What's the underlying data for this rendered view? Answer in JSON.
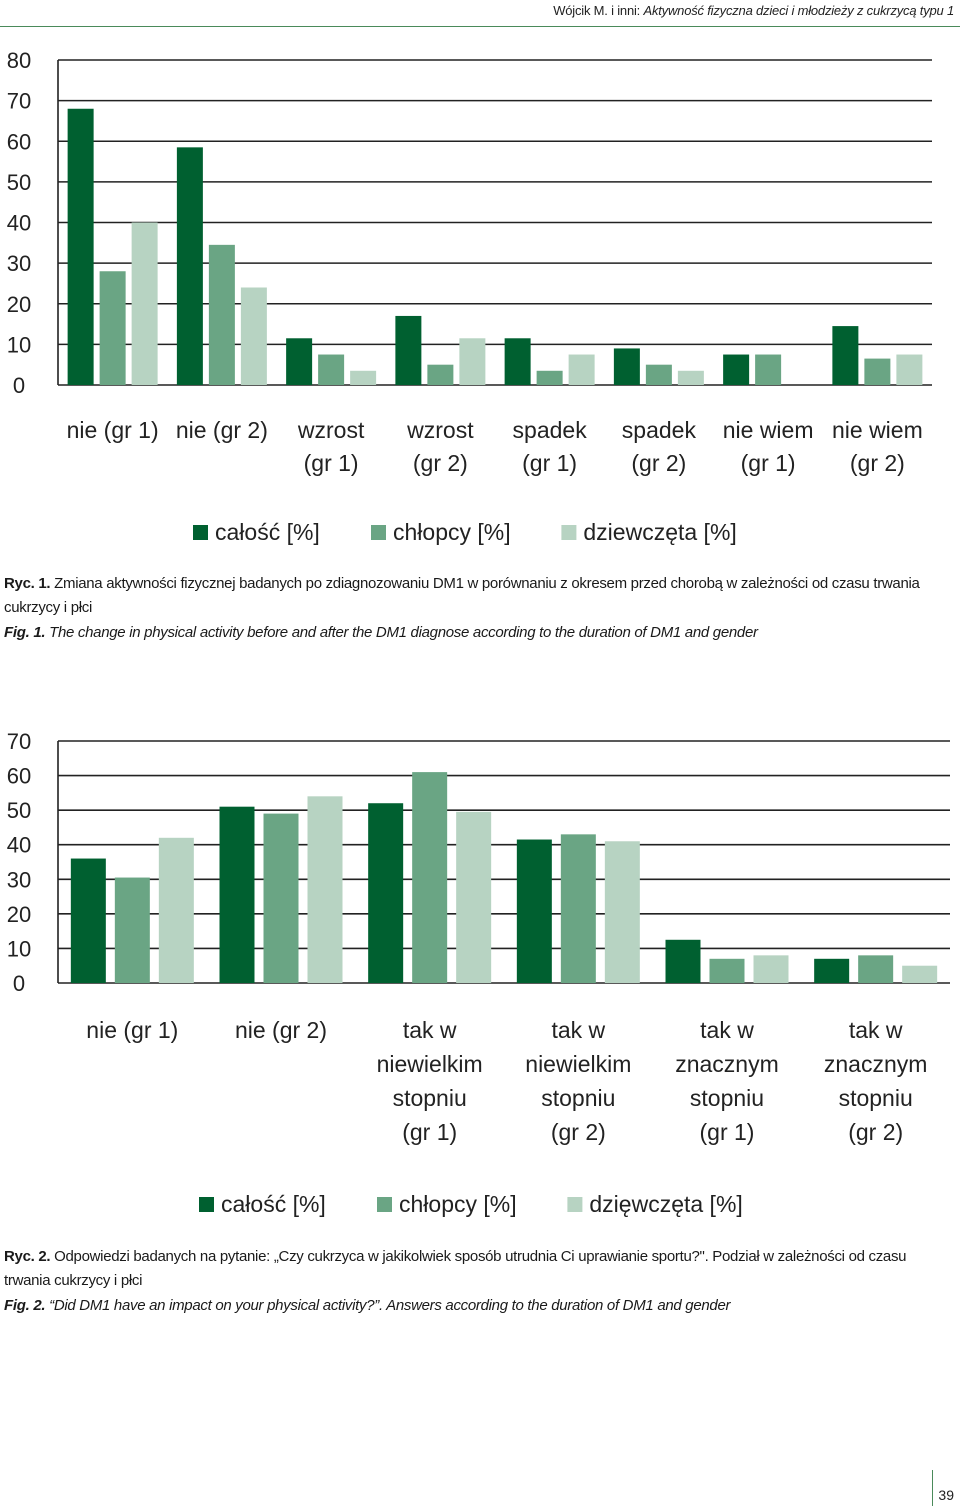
{
  "header": {
    "authors": "Wójcik M. i inni: ",
    "title": "Aktywność fizyczna dzieci i młodzieży z cukrzycą typu 1"
  },
  "colors": {
    "series1": "#006030",
    "series2": "#6aa584",
    "series3": "#b7d3c2",
    "grid": "#222222"
  },
  "chart_data": [
    {
      "type": "bar",
      "categories": [
        [
          "nie (gr 1)"
        ],
        [
          "nie (gr 2)"
        ],
        [
          "wzrost",
          "(gr 1)"
        ],
        [
          "wzrost",
          "(gr 2)"
        ],
        [
          "spadek",
          "(gr 1)"
        ],
        [
          "spadek",
          "(gr 2)"
        ],
        [
          "nie wiem",
          "(gr 1)"
        ],
        [
          "nie wiem",
          "(gr 2)"
        ]
      ],
      "series": [
        {
          "name": "całość [%]",
          "values": [
            68,
            58.5,
            11.5,
            17,
            11.5,
            9,
            7.5,
            14.5
          ]
        },
        {
          "name": "chłopcy [%]",
          "values": [
            28,
            34.5,
            7.5,
            5,
            3.5,
            5,
            7.5,
            6.5
          ]
        },
        {
          "name": "dziewczęta [%]",
          "values": [
            40,
            24,
            3.5,
            11.5,
            7.5,
            3.5,
            null,
            7.5
          ]
        }
      ],
      "y_ticks": [
        0,
        10,
        20,
        30,
        40,
        50,
        60,
        70,
        80
      ],
      "ylim": [
        0,
        80
      ],
      "grid": true,
      "legend": "bottom"
    },
    {
      "type": "bar",
      "categories": [
        [
          "nie (gr 1)"
        ],
        [
          "nie (gr 2)"
        ],
        [
          "tak w",
          "niewielkim",
          "stopniu",
          "(gr 1)"
        ],
        [
          "tak w",
          "niewielkim",
          "stopniu",
          "(gr 2)"
        ],
        [
          "tak w",
          "znacznym",
          "stopniu",
          "(gr 1)"
        ],
        [
          "tak w",
          "znacznym",
          "stopniu",
          "(gr 2)"
        ]
      ],
      "series": [
        {
          "name": "całość [%]",
          "values": [
            36,
            51,
            52,
            41.5,
            12.5,
            7
          ]
        },
        {
          "name": "chłopcy [%]",
          "values": [
            30.5,
            49,
            61,
            43,
            7,
            8
          ]
        },
        {
          "name": "dzięwczęta [%]",
          "values": [
            42,
            54,
            49.5,
            41,
            8,
            5
          ]
        }
      ],
      "y_ticks": [
        0,
        10,
        20,
        30,
        40,
        50,
        60,
        70
      ],
      "ylim": [
        0,
        70
      ],
      "grid": true,
      "legend": "bottom"
    }
  ],
  "captions": {
    "fig1_pl_label": "Ryc. 1.",
    "fig1_pl_text": " Zmiana aktywności fizycznej badanych po zdiagnozowaniu DM1 w porównaniu z okresem przed chorobą w zależności od czasu trwania cukrzycy i płci",
    "fig1_en_label": "Fig. 1.",
    "fig1_en_text": " The change in physical activity before and after the DM1 diagnose according to the duration of DM1 and gender",
    "fig2_pl_label": "Ryc. 2.",
    "fig2_pl_text": " Odpowiedzi badanych na pytanie: „Czy cukrzyca w jakikolwiek sposób utrudnia Ci uprawianie sportu?\". Podział w zależności od czasu trwania cukrzycy i płci",
    "fig2_en_label": "Fig. 2.",
    "fig2_en_text": " “Did DM1 have an impact on your physical activity?”. Answers according to the duration of DM1 and gender"
  },
  "page_number": "39"
}
